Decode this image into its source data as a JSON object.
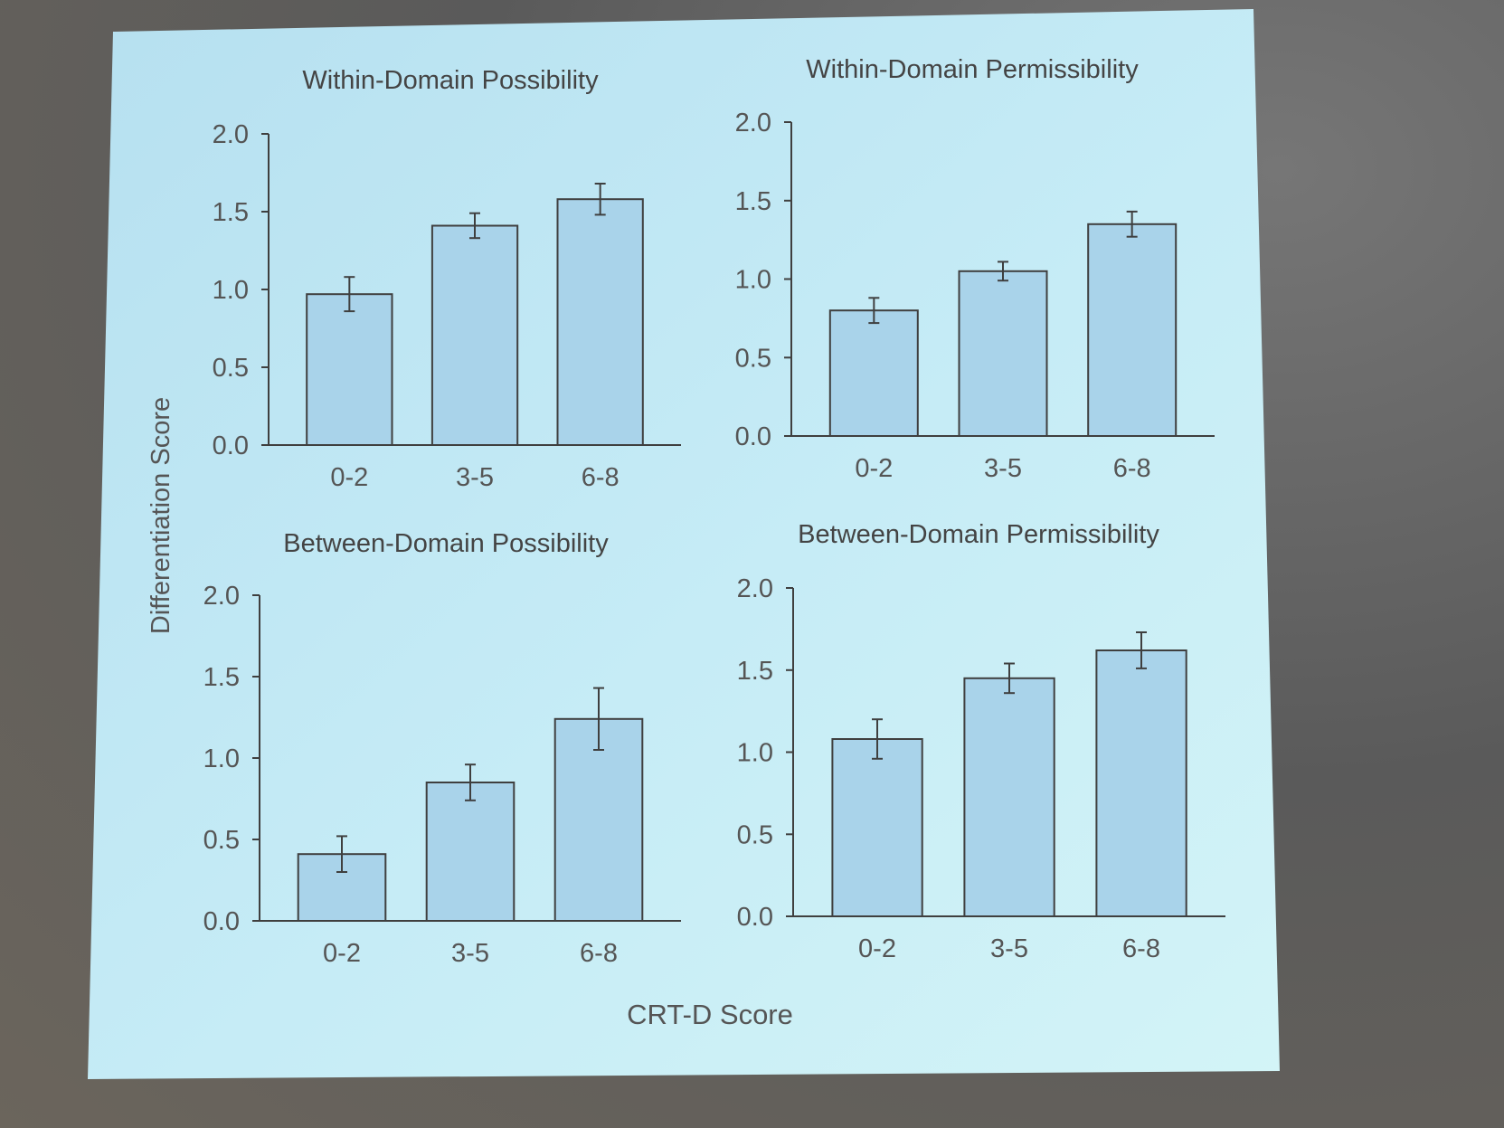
{
  "figure": {
    "ylabel": "Differentiation Score",
    "xlabel": "CRT-D Score"
  },
  "colors": {
    "background": "#cfeff6",
    "bar_fill": "#a9d3ea",
    "axis": "#3f3f3f",
    "text": "#555555"
  },
  "chart_data": [
    {
      "type": "bar",
      "title": "Within-Domain Possibility",
      "categories": [
        "0-2",
        "3-5",
        "6-8"
      ],
      "values": [
        0.97,
        1.41,
        1.58
      ],
      "errors": [
        0.11,
        0.08,
        0.1
      ],
      "ylim": [
        0,
        2.0
      ],
      "yticks": [
        "0.0",
        "0.5",
        "1.0",
        "1.5",
        "2.0"
      ],
      "grid": false
    },
    {
      "type": "bar",
      "title": "Within-Domain Permissibility",
      "categories": [
        "0-2",
        "3-5",
        "6-8"
      ],
      "values": [
        0.8,
        1.05,
        1.35
      ],
      "errors": [
        0.08,
        0.06,
        0.08
      ],
      "ylim": [
        0,
        2.0
      ],
      "yticks": [
        "0.0",
        "0.5",
        "1.0",
        "1.5",
        "2.0"
      ],
      "grid": false
    },
    {
      "type": "bar",
      "title": "Between-Domain Possibility",
      "categories": [
        "0-2",
        "3-5",
        "6-8"
      ],
      "values": [
        0.41,
        0.85,
        1.24
      ],
      "errors": [
        0.11,
        0.11,
        0.19
      ],
      "ylim": [
        0,
        2.0
      ],
      "yticks": [
        "0.0",
        "0.5",
        "1.0",
        "1.5",
        "2.0"
      ],
      "grid": false
    },
    {
      "type": "bar",
      "title": "Between-Domain Permissibility",
      "categories": [
        "0-2",
        "3-5",
        "6-8"
      ],
      "values": [
        1.08,
        1.45,
        1.62
      ],
      "errors": [
        0.12,
        0.09,
        0.11
      ],
      "ylim": [
        0,
        2.0
      ],
      "yticks": [
        "0.0",
        "0.5",
        "1.0",
        "1.5",
        "2.0"
      ],
      "grid": false
    }
  ]
}
